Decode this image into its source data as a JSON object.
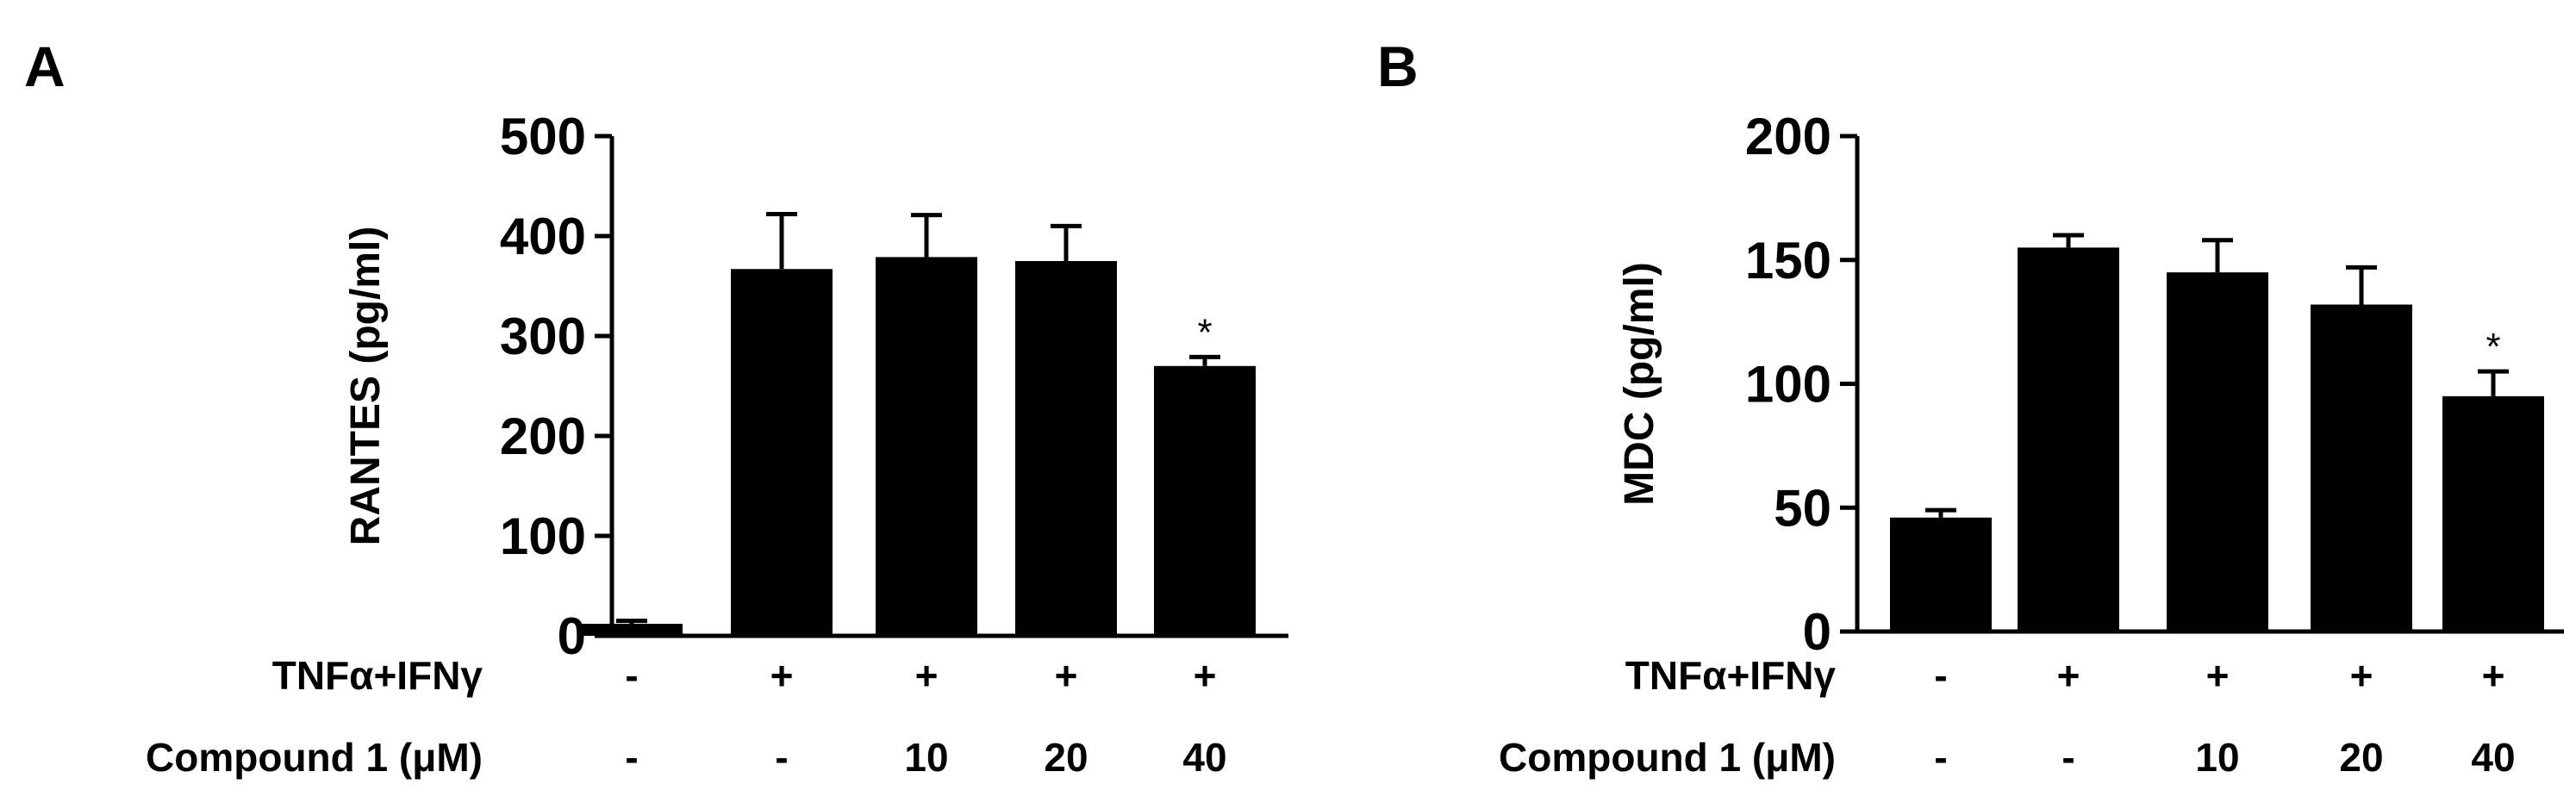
{
  "chart_data": [
    {
      "panel": "A",
      "type": "bar",
      "ylabel": "RANTES (pg/ml)",
      "ylim": [
        0,
        500
      ],
      "yticks": [
        0,
        100,
        200,
        300,
        400,
        500
      ],
      "values": [
        12,
        367,
        379,
        375,
        270
      ],
      "errors": [
        3,
        55,
        42,
        35,
        9
      ],
      "annotations": [
        "",
        "",
        "",
        "",
        "*"
      ],
      "conditions": [
        {
          "label": "TNFα+IFNγ",
          "values": [
            "-",
            "+",
            "+",
            "+",
            "+"
          ]
        },
        {
          "label": "Compound 1 (μM)",
          "values": [
            "-",
            "-",
            "10",
            "20",
            "40"
          ]
        }
      ],
      "bar_color": "#000000"
    },
    {
      "panel": "B",
      "type": "bar",
      "ylabel": "MDC (pg/ml)",
      "ylim": [
        0,
        200
      ],
      "yticks": [
        0,
        50,
        100,
        150,
        200
      ],
      "values": [
        46,
        155,
        145,
        132,
        95
      ],
      "errors": [
        3,
        5,
        13,
        15,
        10
      ],
      "annotations": [
        "",
        "",
        "",
        "",
        "*"
      ],
      "conditions": [
        {
          "label": "TNFα+IFNγ",
          "values": [
            "-",
            "+",
            "+",
            "+",
            "+"
          ]
        },
        {
          "label": "Compound 1 (μM)",
          "values": [
            "-",
            "-",
            "10",
            "20",
            "40"
          ]
        }
      ],
      "bar_color": "#000000"
    }
  ]
}
